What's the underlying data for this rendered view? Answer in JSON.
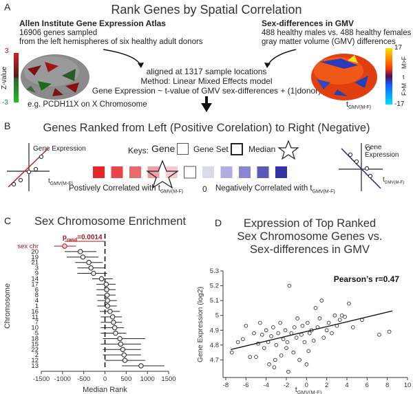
{
  "panel_a": {
    "letter": "A",
    "title": "Rank Genes by  Spatial Correlation",
    "left_title": "Allen Institute Gene Expression Atlas",
    "left_line1": "16906 genes sampled",
    "left_line2": "from the left hemispheres of six healthy adult donors",
    "right_title": "Sex-differences in GMV",
    "right_line1": "488 healthy males vs. 488 healthy females",
    "right_line2": "gray matter volume (GMV) differences",
    "center_line1": "aligned at 1317 sample locations",
    "center_line2": "Method: Linear Mixed Effects model",
    "center_line3": "Gene Expression ~ t-value of GMV sex-differences + (1|donor)",
    "example": "e.g. PCDH11X on X Chromosome",
    "zscale_label": "Z-value",
    "zscale_max": "3",
    "zscale_min": "-3",
    "tscale_max": "17",
    "tscale_min": "-17",
    "tscale_label_top": "M>F",
    "tscale_label_mid": "t",
    "tscale_label_bot": "F>M",
    "t_label": "t",
    "t_sub": "GMV(M-F)"
  },
  "panel_b": {
    "letter": "B",
    "title": "Genes Ranked from Left (Positive Corelation) to Right (Negative)",
    "gene_expression": "Gene Expression",
    "t_label": "t",
    "t_sub": "GMV(M-F)",
    "keys_label": "Keys:",
    "key_gene": "Gene",
    "key_geneset": "Gene Set",
    "key_median": "Median",
    "pos_text": "Postively Correlated with t",
    "zero": "0",
    "neg_text": "Negatively Correlated with t",
    "colors": [
      "#e8252b",
      "#e8454a",
      "#ea6b6f",
      "#ef9ea2",
      "#f6cacc",
      "#ffffff",
      "#d9d9f0",
      "#aeaee0",
      "#8888d0",
      "#5a5ab8",
      "#3434a6"
    ]
  },
  "panel_c": {
    "letter": "C",
    "title": "Sex Chromosome Enrichment",
    "ylabel": "Chromosome",
    "xlabel": "Median Rank",
    "sex_chr_label": "sex chr",
    "p_label": "p",
    "p_sub": "rand",
    "p_value": "=0.0014"
  },
  "panel_d": {
    "letter": "D",
    "title_line1": "Expression of Top Ranked",
    "title_line2": "Sex Chromosome Genes vs.",
    "title_line3": "Sex-differences in GMV",
    "pearson": "Pearson’s r=0.47",
    "ylabel": "Gene Expression (log2)",
    "xlabel": "t",
    "xlabel_sub": "GMV(M-F)"
  },
  "chart_data": [
    {
      "type": "scatter",
      "title": "Sex Chromosome Enrichment",
      "xlabel": "Median Rank",
      "ylabel": "Chromosome",
      "xlim": [
        -1500,
        1500
      ],
      "x_ticks": [
        -1500,
        -1000,
        -500,
        0,
        500,
        1000,
        1500
      ],
      "categories": [
        "sex chr",
        "20",
        "19",
        "21",
        "3",
        "9",
        "14",
        "17",
        "6",
        "8",
        "4",
        "1",
        "16",
        "11",
        "7",
        "10",
        "5",
        "18",
        "15",
        "22",
        "2",
        "12",
        "13"
      ],
      "values": [
        -950,
        -580,
        -520,
        -380,
        -330,
        -270,
        -80,
        30,
        40,
        50,
        60,
        60,
        120,
        180,
        200,
        230,
        250,
        350,
        370,
        420,
        450,
        470,
        850
      ],
      "ci_low": [
        -1200,
        -950,
        -900,
        -700,
        -650,
        -650,
        -300,
        -200,
        -200,
        -200,
        -180,
        -180,
        -120,
        -100,
        -100,
        -100,
        -100,
        -50,
        -100,
        -50,
        -50,
        0,
        400
      ],
      "ci_high": [
        -680,
        -200,
        -150,
        -50,
        0,
        50,
        180,
        250,
        250,
        250,
        280,
        280,
        350,
        400,
        400,
        450,
        500,
        950,
        850,
        850,
        850,
        950,
        1400
      ]
    },
    {
      "type": "scatter",
      "title": "Expression of Top Ranked Sex Chromosome Genes vs. Sex-differences in GMV",
      "xlabel": "tGMV(M-F)",
      "ylabel": "Gene Expression (log2)",
      "xlim": [
        -8,
        10
      ],
      "ylim": [
        4.6,
        5.3
      ],
      "x_ticks": [
        -8,
        -6,
        -4,
        -2,
        0,
        2,
        4,
        6,
        8,
        10
      ],
      "y_ticks": [
        4.7,
        4.8,
        4.9,
        5,
        5.1,
        5.2,
        5.3
      ],
      "fit_line": [
        [
          -7.5,
          4.77
        ],
        [
          8.5,
          5.03
        ]
      ],
      "x": [
        -7.4,
        -6.8,
        -6.3,
        -6.0,
        -5.6,
        -5.2,
        -4.8,
        -4.6,
        -4.4,
        -4.2,
        -4.0,
        -3.8,
        -3.7,
        -3.5,
        -3.3,
        -3.1,
        -3.0,
        -2.8,
        -2.6,
        -2.5,
        -2.3,
        -2.1,
        -2.0,
        -1.9,
        -1.7,
        -1.5,
        -1.3,
        -1.2,
        -1.0,
        -0.9,
        -0.7,
        -0.5,
        -0.4,
        -0.2,
        0.0,
        0.1,
        0.3,
        0.5,
        0.7,
        0.9,
        1.1,
        1.3,
        1.5,
        1.7,
        2.0,
        2.2,
        2.5,
        2.8,
        3.0,
        3.3,
        3.5,
        3.8,
        4.2,
        4.6,
        5.5,
        7.2,
        8.2,
        -1.8,
        0.2,
        -3.2,
        -5.0
      ],
      "y": [
        4.75,
        4.82,
        4.84,
        4.93,
        4.72,
        4.88,
        4.81,
        4.95,
        4.87,
        4.78,
        4.9,
        4.82,
        4.67,
        4.86,
        4.92,
        4.7,
        4.8,
        4.88,
        4.95,
        4.73,
        4.84,
        4.9,
        4.78,
        4.82,
        5.2,
        4.88,
        4.75,
        4.92,
        4.85,
        4.98,
        4.7,
        4.87,
        4.93,
        4.82,
        4.67,
        4.95,
        4.88,
        4.9,
        4.83,
        5.05,
        4.92,
        4.98,
        5.1,
        4.85,
        4.9,
        4.95,
        4.88,
        5.0,
        4.93,
        4.97,
        5.0,
        4.99,
        5.08,
        4.92,
        4.97,
        4.87,
        4.89,
        4.62,
        4.76,
        4.65,
        4.72
      ]
    }
  ]
}
